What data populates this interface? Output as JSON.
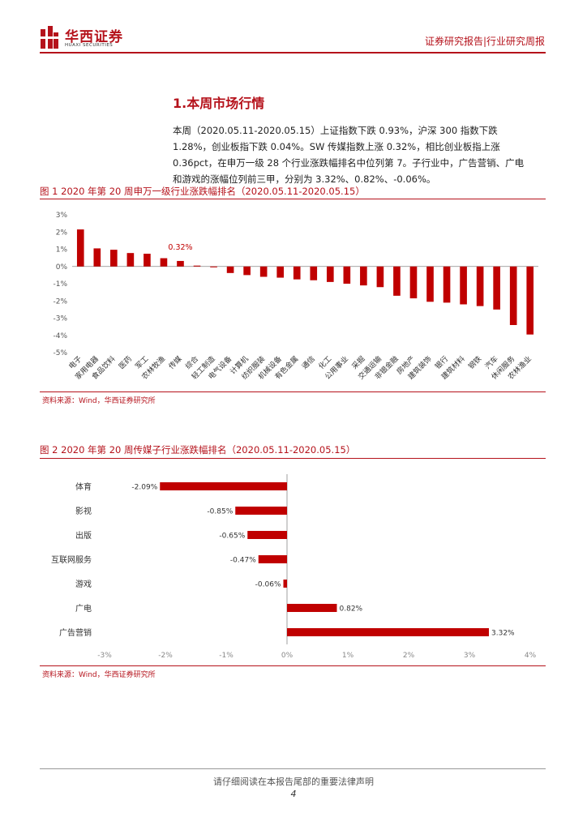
{
  "header": {
    "company_cn": "华西证券",
    "company_en": "HUAXI SECURITIES",
    "report_type": "证券研究报告|行业研究周报"
  },
  "section": {
    "title": "1.本周市场行情"
  },
  "paragraph": {
    "lines": [
      "本周（2020.05.11-2020.05.15）上证指数下跌 0.93%，沪深 300 指数下跌",
      "1.28%，创业板指下跌 0.04%。SW 传媒指数上涨 0.32%，相比创业板指上涨",
      "0.36pct，在申万一级 28 个行业涨跌幅排名中位列第 7。子行业中，广告营销、广电",
      "和游戏的涨幅位列前三甲，分别为 3.32%、0.82%、-0.06%。"
    ]
  },
  "figure1": {
    "title": "图 1 2020 年第 20 周申万一级行业涨跌幅排名（2020.05.11-2020.05.15）",
    "source": "资料来源：Wind，华西证券研究所"
  },
  "figure2": {
    "title": "图 2 2020 年第 20 周传媒子行业涨跌幅排名（2020.05.11-2020.05.15）",
    "source": "资料来源：Wind，华西证券研究所"
  },
  "chart_data": [
    {
      "type": "bar",
      "title": "2020 年第 20 周申万一级行业涨跌幅排名",
      "categories": [
        "电子",
        "家用电器",
        "食品饮料",
        "医药",
        "军工",
        "农林牧渔",
        "传媒",
        "综合",
        "轻工制造",
        "电气设备",
        "计算机",
        "纺织服装",
        "机械设备",
        "有色金属",
        "通信",
        "化工",
        "公用事业",
        "采掘",
        "交通运输",
        "非银金融",
        "房地产",
        "建筑装饰",
        "银行",
        "建筑材料",
        "钢铁",
        "汽车",
        "休闲服务",
        "农林渔业"
      ],
      "values": [
        2.15,
        1.05,
        0.97,
        0.78,
        0.74,
        0.48,
        0.32,
        0.05,
        -0.05,
        -0.38,
        -0.5,
        -0.6,
        -0.65,
        -0.75,
        -0.8,
        -0.9,
        -1.0,
        -1.1,
        -1.2,
        -1.7,
        -1.85,
        -2.05,
        -2.1,
        -2.2,
        -2.3,
        -2.5,
        -3.4,
        -3.95
      ],
      "highlight": {
        "category": "传媒",
        "label": "0.32%"
      },
      "ylim": [
        -5,
        3
      ],
      "yticks": [
        "3%",
        "2%",
        "1%",
        "0%",
        "-1%",
        "-2%",
        "-3%",
        "-4%",
        "-5%"
      ],
      "bar_color": "#c00000",
      "highlight_color": "#c00000"
    },
    {
      "type": "bar",
      "orientation": "horizontal",
      "title": "2020 年第 20 周传媒子行业涨跌幅排名",
      "categories": [
        "体育",
        "影视",
        "出版",
        "互联网服务",
        "游戏",
        "广电",
        "广告营销"
      ],
      "values": [
        -2.09,
        -0.85,
        -0.65,
        -0.47,
        -0.06,
        0.82,
        3.32
      ],
      "labels": [
        "-2.09%",
        "-0.85%",
        "-0.65%",
        "-0.47%",
        "-0.06%",
        "0.82%",
        "3.32%"
      ],
      "xlim": [
        -3,
        4
      ],
      "xticks": [
        "-3%",
        "-2%",
        "-1%",
        "0%",
        "1%",
        "2%",
        "3%",
        "4%"
      ],
      "bar_color": "#c00000"
    }
  ],
  "footer": {
    "notice": "请仔细阅读在本报告尾部的重要法律声明",
    "page": "4"
  }
}
